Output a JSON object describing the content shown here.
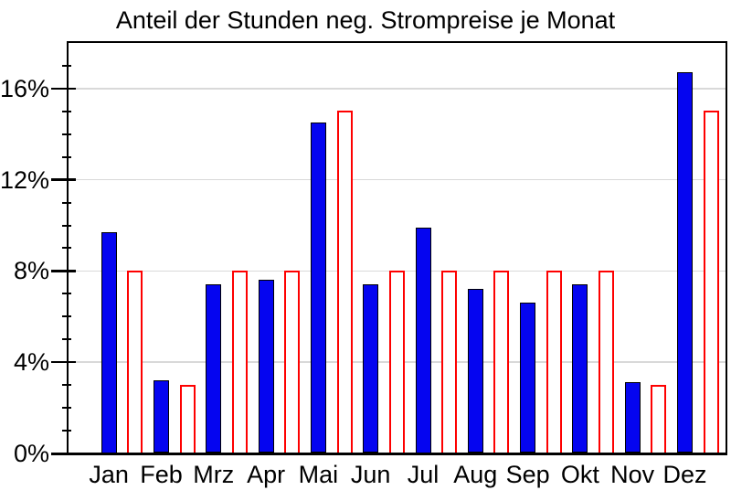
{
  "chart_data": {
    "type": "bar",
    "title": "Anteil der Stunden neg. Strompreise je Monat",
    "categories": [
      "Jan",
      "Feb",
      "Mrz",
      "Apr",
      "Mai",
      "Jun",
      "Jul",
      "Aug",
      "Sep",
      "Okt",
      "Nov",
      "Dez"
    ],
    "series": [
      {
        "id": "blue-solid",
        "style": "solid",
        "color": "#0505F0",
        "values": [
          9.7,
          3.2,
          7.4,
          7.6,
          14.5,
          7.4,
          9.9,
          7.2,
          6.6,
          7.4,
          3.1,
          16.7
        ]
      },
      {
        "id": "red-outline",
        "style": "outline",
        "color": "#FE0000",
        "values": [
          8.0,
          3.0,
          8.0,
          8.0,
          15.0,
          8.0,
          8.0,
          8.0,
          8.0,
          8.0,
          3.0,
          15.0
        ]
      }
    ],
    "xlabel": "",
    "ylabel": "",
    "ylim": [
      0,
      18
    ],
    "yticks": {
      "major_values": [
        0,
        4,
        8,
        12,
        16
      ],
      "major_labels": [
        "0%",
        "4%",
        "8%",
        "12%",
        "16%"
      ],
      "minor_step": 1
    },
    "grid": "major-horizontal",
    "legend": "none",
    "colors": {
      "grid": "#D9D9D9",
      "axis": "#000000",
      "text": "#000000",
      "background": "#FFFFFF"
    }
  }
}
